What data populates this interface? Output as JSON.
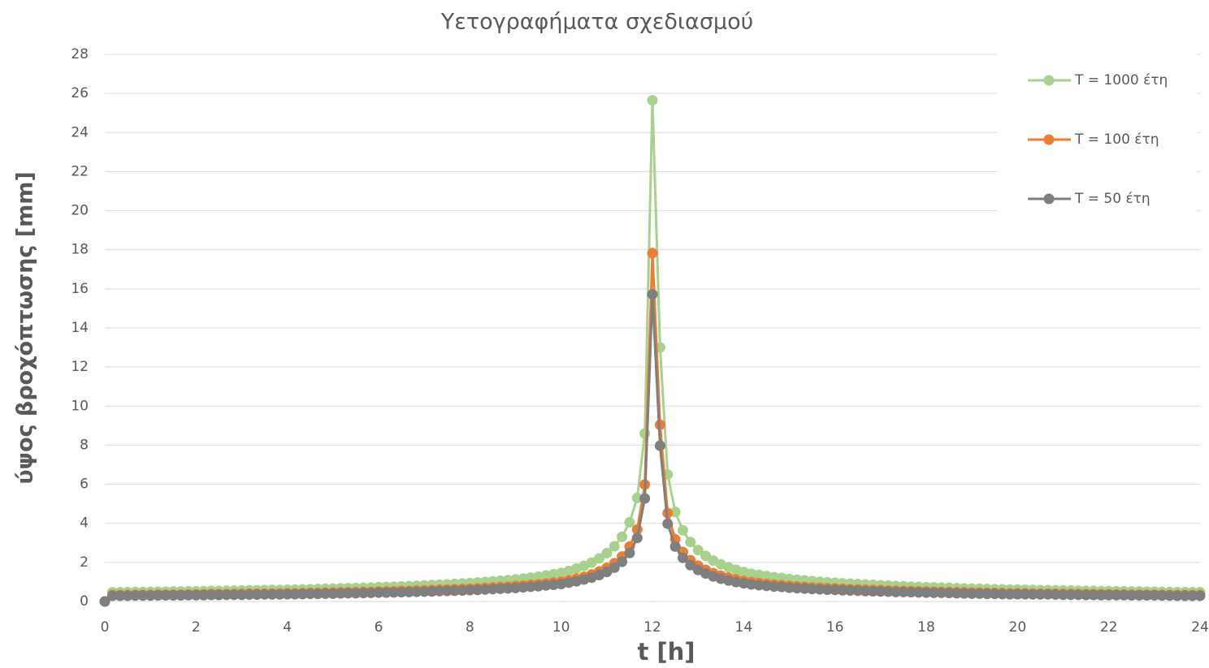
{
  "chart_data": {
    "type": "line",
    "title": "Υετογραφήματα σχεδιασμού",
    "xlabel": "t [h]",
    "ylabel": "ύψος βροχόπτωσης [mm]",
    "x": [
      0,
      0.167,
      0.333,
      0.5,
      0.667,
      0.833,
      1,
      1.167,
      1.333,
      1.5,
      1.667,
      1.833,
      2,
      2.167,
      2.333,
      2.5,
      2.667,
      2.833,
      3,
      3.167,
      3.333,
      3.5,
      3.667,
      3.833,
      4,
      4.167,
      4.333,
      4.5,
      4.667,
      4.833,
      5,
      5.167,
      5.333,
      5.5,
      5.667,
      5.833,
      6,
      6.167,
      6.333,
      6.5,
      6.667,
      6.833,
      7,
      7.167,
      7.333,
      7.5,
      7.667,
      7.833,
      8,
      8.167,
      8.333,
      8.5,
      8.667,
      8.833,
      9,
      9.167,
      9.333,
      9.5,
      9.667,
      9.833,
      10,
      10.167,
      10.333,
      10.5,
      10.667,
      10.833,
      11,
      11.167,
      11.333,
      11.5,
      11.667,
      11.833,
      12,
      12.167,
      12.333,
      12.5,
      12.667,
      12.833,
      13,
      13.167,
      13.333,
      13.5,
      13.667,
      13.833,
      14,
      14.167,
      14.333,
      14.5,
      14.667,
      14.833,
      15,
      15.167,
      15.333,
      15.5,
      15.667,
      15.833,
      16,
      16.167,
      16.333,
      16.5,
      16.667,
      16.833,
      17,
      17.167,
      17.333,
      17.5,
      17.667,
      17.833,
      18,
      18.167,
      18.333,
      18.5,
      18.667,
      18.833,
      19,
      19.167,
      19.333,
      19.5,
      19.667,
      19.833,
      20,
      20.167,
      20.333,
      20.5,
      20.667,
      20.833,
      21,
      21.167,
      21.333,
      21.5,
      21.667,
      21.833,
      22,
      22.167,
      22.333,
      22.5,
      22.667,
      22.833,
      23,
      23.167,
      23.333,
      23.5,
      23.667,
      23.833,
      24
    ],
    "series": [
      {
        "name": "T = 1000 έτη",
        "color": "#a9d18e",
        "values": [
          0,
          0.47,
          0.48,
          0.48,
          0.49,
          0.49,
          0.49,
          0.5,
          0.5,
          0.51,
          0.51,
          0.52,
          0.52,
          0.53,
          0.54,
          0.54,
          0.55,
          0.55,
          0.56,
          0.57,
          0.57,
          0.58,
          0.59,
          0.59,
          0.6,
          0.61,
          0.62,
          0.63,
          0.64,
          0.65,
          0.66,
          0.67,
          0.68,
          0.69,
          0.7,
          0.71,
          0.73,
          0.74,
          0.75,
          0.77,
          0.78,
          0.8,
          0.82,
          0.84,
          0.86,
          0.88,
          0.9,
          0.92,
          0.94,
          0.97,
          1.0,
          1.03,
          1.06,
          1.09,
          1.13,
          1.17,
          1.22,
          1.27,
          1.33,
          1.39,
          1.46,
          1.56,
          1.68,
          1.82,
          1.99,
          2.2,
          2.47,
          2.82,
          3.31,
          4.05,
          5.3,
          8.6,
          25.65,
          13.0,
          6.5,
          4.58,
          3.64,
          3.04,
          2.63,
          2.33,
          2.09,
          1.9,
          1.75,
          1.62,
          1.51,
          1.42,
          1.36,
          1.3,
          1.24,
          1.2,
          1.15,
          1.11,
          1.08,
          1.04,
          1.01,
          0.98,
          0.96,
          0.93,
          0.91,
          0.89,
          0.87,
          0.85,
          0.83,
          0.81,
          0.79,
          0.78,
          0.76,
          0.75,
          0.73,
          0.72,
          0.71,
          0.7,
          0.68,
          0.67,
          0.66,
          0.65,
          0.64,
          0.63,
          0.62,
          0.61,
          0.61,
          0.6,
          0.59,
          0.58,
          0.58,
          0.57,
          0.56,
          0.56,
          0.55,
          0.54,
          0.54,
          0.53,
          0.53,
          0.52,
          0.52,
          0.51,
          0.51,
          0.5,
          0.5,
          0.49,
          0.49,
          0.48,
          0.48,
          0.48,
          0.47
        ]
      },
      {
        "name": "T = 100 έτη",
        "color": "#ed7d31",
        "values": [
          0,
          0.33,
          0.33,
          0.33,
          0.34,
          0.34,
          0.34,
          0.35,
          0.35,
          0.35,
          0.35,
          0.36,
          0.36,
          0.37,
          0.38,
          0.38,
          0.38,
          0.38,
          0.39,
          0.4,
          0.4,
          0.4,
          0.41,
          0.41,
          0.42,
          0.42,
          0.43,
          0.44,
          0.44,
          0.45,
          0.46,
          0.47,
          0.47,
          0.48,
          0.49,
          0.49,
          0.51,
          0.51,
          0.52,
          0.54,
          0.54,
          0.56,
          0.57,
          0.58,
          0.6,
          0.61,
          0.63,
          0.64,
          0.65,
          0.67,
          0.7,
          0.72,
          0.74,
          0.76,
          0.79,
          0.81,
          0.85,
          0.88,
          0.92,
          0.97,
          1.01,
          1.08,
          1.17,
          1.26,
          1.38,
          1.53,
          1.72,
          1.96,
          2.3,
          2.81,
          3.68,
          5.98,
          17.83,
          9.04,
          4.52,
          3.18,
          2.53,
          2.11,
          1.83,
          1.62,
          1.45,
          1.32,
          1.22,
          1.13,
          1.05,
          0.99,
          0.95,
          0.9,
          0.86,
          0.83,
          0.8,
          0.77,
          0.75,
          0.72,
          0.7,
          0.68,
          0.67,
          0.65,
          0.63,
          0.62,
          0.6,
          0.59,
          0.58,
          0.56,
          0.55,
          0.54,
          0.53,
          0.52,
          0.51,
          0.5,
          0.49,
          0.49,
          0.47,
          0.47,
          0.46,
          0.45,
          0.44,
          0.44,
          0.43,
          0.42,
          0.42,
          0.42,
          0.41,
          0.4,
          0.4,
          0.4,
          0.39,
          0.39,
          0.38,
          0.38,
          0.38,
          0.37,
          0.37,
          0.36,
          0.36,
          0.35,
          0.35,
          0.35,
          0.35,
          0.34,
          0.34,
          0.33,
          0.33,
          0.33,
          0.33
        ]
      },
      {
        "name": "T = 50 έτη",
        "color": "#7f7f7f",
        "values": [
          0,
          0.29,
          0.29,
          0.29,
          0.3,
          0.3,
          0.3,
          0.31,
          0.31,
          0.31,
          0.31,
          0.32,
          0.32,
          0.32,
          0.33,
          0.33,
          0.34,
          0.34,
          0.34,
          0.35,
          0.35,
          0.36,
          0.36,
          0.36,
          0.37,
          0.37,
          0.38,
          0.39,
          0.39,
          0.4,
          0.4,
          0.41,
          0.42,
          0.42,
          0.43,
          0.44,
          0.45,
          0.45,
          0.46,
          0.47,
          0.48,
          0.49,
          0.5,
          0.51,
          0.53,
          0.54,
          0.55,
          0.56,
          0.58,
          0.59,
          0.61,
          0.63,
          0.65,
          0.67,
          0.69,
          0.72,
          0.75,
          0.78,
          0.82,
          0.85,
          0.89,
          0.96,
          1.03,
          1.12,
          1.22,
          1.35,
          1.51,
          1.73,
          2.03,
          2.48,
          3.25,
          5.27,
          15.72,
          7.97,
          3.98,
          2.81,
          2.23,
          1.86,
          1.61,
          1.43,
          1.28,
          1.16,
          1.07,
          0.99,
          0.93,
          0.87,
          0.83,
          0.8,
          0.76,
          0.74,
          0.7,
          0.68,
          0.66,
          0.64,
          0.62,
          0.6,
          0.59,
          0.57,
          0.56,
          0.55,
          0.53,
          0.52,
          0.51,
          0.5,
          0.48,
          0.48,
          0.47,
          0.46,
          0.45,
          0.44,
          0.44,
          0.43,
          0.42,
          0.41,
          0.4,
          0.4,
          0.39,
          0.39,
          0.38,
          0.37,
          0.37,
          0.37,
          0.36,
          0.36,
          0.36,
          0.35,
          0.34,
          0.34,
          0.34,
          0.33,
          0.33,
          0.32,
          0.32,
          0.32,
          0.32,
          0.31,
          0.31,
          0.31,
          0.31,
          0.3,
          0.3,
          0.29,
          0.29,
          0.29,
          0.29
        ]
      }
    ],
    "xlim": [
      0,
      24
    ],
    "xticks": [
      0,
      2,
      4,
      6,
      8,
      10,
      12,
      14,
      16,
      18,
      20,
      22,
      24
    ],
    "ylim": [
      0,
      28
    ],
    "yticks": [
      0,
      2,
      4,
      6,
      8,
      10,
      12,
      14,
      16,
      18,
      20,
      22,
      24,
      26,
      28
    ],
    "grid": true,
    "legend": "right"
  }
}
